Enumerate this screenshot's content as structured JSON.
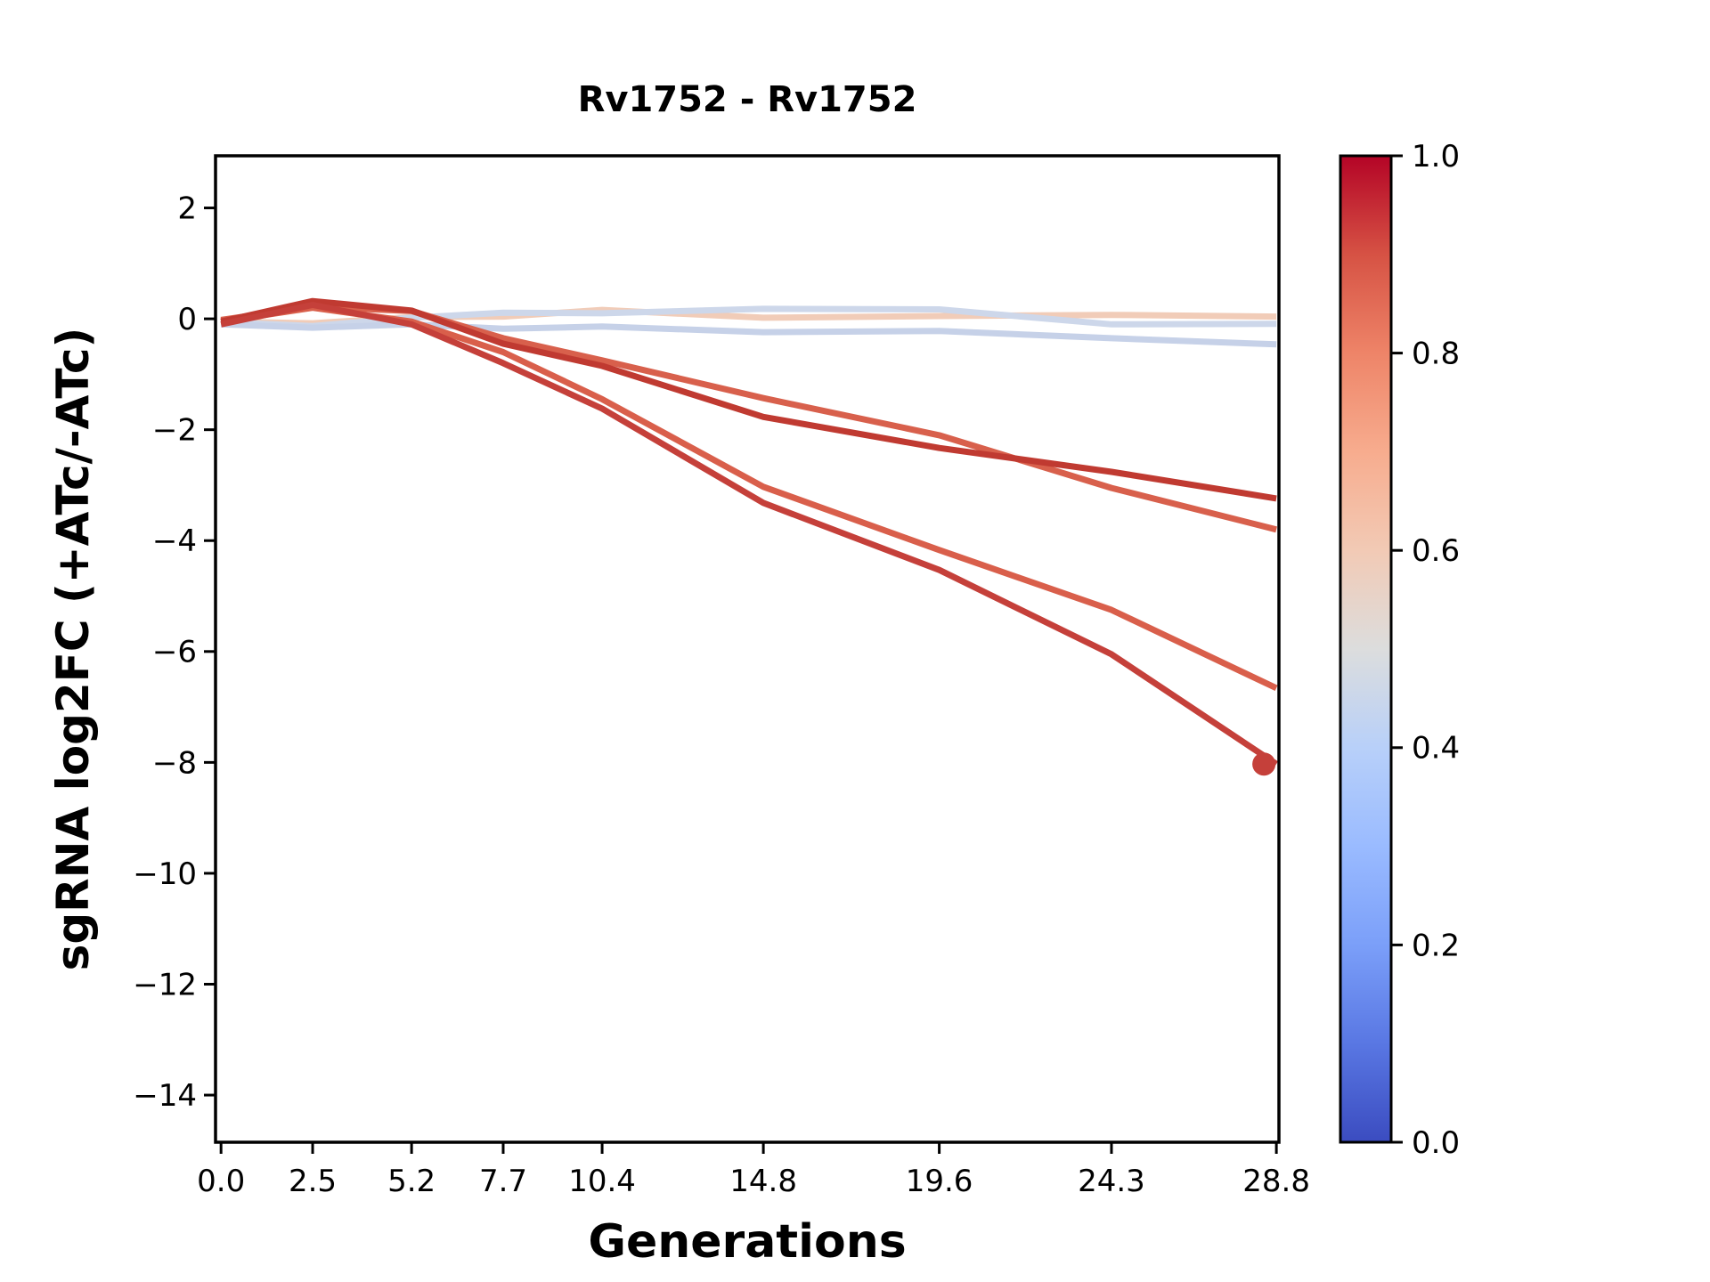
{
  "title": "Rv1752 - Rv1752",
  "xlabel": "Generations",
  "ylabel": "sgRNA log2FC (+ATc/-ATc)",
  "colorbar": {
    "orientation": "vertical",
    "colormap": "coolwarm",
    "tick_labels": [
      "1.0",
      "0.8",
      "0.6",
      "0.4",
      "0.2",
      "0.0"
    ],
    "tick_values": [
      1.0,
      0.8,
      0.6,
      0.4,
      0.2,
      0.0
    ],
    "gradient_stops": [
      {
        "t": 0.0,
        "color": "#3b4cc0"
      },
      {
        "t": 0.1,
        "color": "#5977e3"
      },
      {
        "t": 0.2,
        "color": "#7b9ff9"
      },
      {
        "t": 0.3,
        "color": "#9abbff"
      },
      {
        "t": 0.4,
        "color": "#b8d0f9"
      },
      {
        "t": 0.5,
        "color": "#dcdddd"
      },
      {
        "t": 0.6,
        "color": "#f2cab5"
      },
      {
        "t": 0.7,
        "color": "#f7ac8e"
      },
      {
        "t": 0.8,
        "color": "#ee8468"
      },
      {
        "t": 0.9,
        "color": "#d65244"
      },
      {
        "t": 1.0,
        "color": "#b40426"
      }
    ]
  },
  "chart_data": {
    "type": "line",
    "title": "Rv1752 - Rv1752",
    "xlabel": "Generations",
    "ylabel": "sgRNA log2FC (+ATc/-ATc)",
    "x": [
      0.0,
      2.5,
      5.2,
      7.7,
      10.4,
      14.8,
      19.6,
      24.3,
      28.8
    ],
    "x_tick_labels": [
      "0.0",
      "2.5",
      "5.2",
      "7.7",
      "10.4",
      "14.8",
      "19.6",
      "24.3",
      "28.8"
    ],
    "y_tick_values": [
      2,
      0,
      -2,
      -4,
      -6,
      -8,
      -10,
      -12,
      -14
    ],
    "y_tick_labels": [
      "2",
      "0",
      "−2",
      "−4",
      "−6",
      "−8",
      "−10",
      "−12",
      "−14"
    ],
    "xlim": [
      -0.15,
      28.87
    ],
    "ylim": [
      -14.85,
      2.94
    ],
    "grid": false,
    "legend": "none (colorbar encodes sgRNA strength 0-1, coolwarm)",
    "series": [
      {
        "name": "sgRNA_flat_warm",
        "colormap_value": 0.6,
        "color": "#f1ccb8",
        "linewidth": 7,
        "values": [
          -0.05,
          -0.08,
          0.03,
          0.04,
          0.16,
          0.02,
          0.05,
          0.07,
          0.04
        ]
      },
      {
        "name": "sgRNA_flat_cool_1",
        "colormap_value": 0.43,
        "color": "#cdd7ea",
        "linewidth": 7,
        "values": [
          -0.06,
          -0.13,
          0.02,
          0.11,
          0.1,
          0.18,
          0.17,
          -0.1,
          -0.09
        ]
      },
      {
        "name": "sgRNA_flat_cool_2",
        "colormap_value": 0.41,
        "color": "#c6d1e8",
        "linewidth": 7,
        "values": [
          -0.1,
          -0.16,
          -0.1,
          -0.18,
          -0.14,
          -0.24,
          -0.22,
          -0.35,
          -0.46
        ]
      },
      {
        "name": "sgRNA_mid_light_red",
        "colormap_value": 0.82,
        "color": "#d8604c",
        "linewidth": 7,
        "values": [
          -0.02,
          0.22,
          0.14,
          -0.35,
          -0.75,
          -1.43,
          -2.1,
          -3.05,
          -3.8
        ]
      },
      {
        "name": "sgRNA_steep_light_red",
        "colormap_value": 0.84,
        "color": "#d95f4b",
        "linewidth": 7,
        "values": [
          -0.05,
          0.2,
          -0.05,
          -0.6,
          -1.45,
          -3.03,
          -4.17,
          -5.25,
          -6.66
        ]
      },
      {
        "name": "sgRNA_mid_dark_red",
        "colormap_value": 0.95,
        "color": "#c03a31",
        "linewidth": 7,
        "values": [
          -0.05,
          0.32,
          0.15,
          -0.45,
          -0.85,
          -1.77,
          -2.33,
          -2.76,
          -3.24
        ]
      },
      {
        "name": "sgRNA_steep_dark_red",
        "colormap_value": 0.93,
        "color": "#c5403a",
        "linewidth": 7,
        "marker_end": true,
        "marker_radius": 13,
        "values": [
          -0.1,
          0.25,
          -0.1,
          -0.8,
          -1.62,
          -3.32,
          -4.53,
          -6.05,
          -8.03
        ]
      }
    ]
  }
}
